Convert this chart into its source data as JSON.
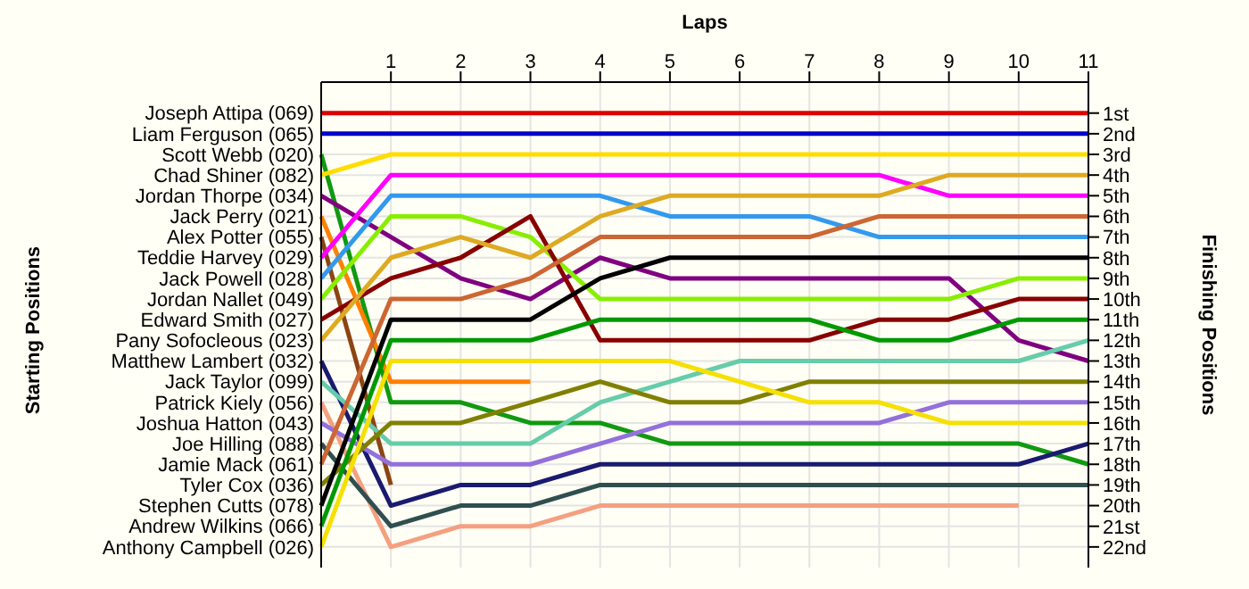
{
  "chart_data": {
    "type": "line",
    "xlabel": "Laps",
    "annotations": [
      "Starting Positions"
    ],
    "y2label": "Finishing Positions",
    "x": [
      0,
      1,
      2,
      3,
      4,
      5,
      6,
      7,
      8,
      9,
      10,
      11
    ],
    "xlim": [
      0,
      11
    ],
    "xticks": [
      1,
      2,
      3,
      4,
      5,
      6,
      7,
      8,
      9,
      10,
      11
    ],
    "y2lim": [
      23,
      -0.5
    ],
    "y2ticks": [
      {
        "value": 1,
        "label": "1st"
      },
      {
        "value": 2,
        "label": "2nd"
      },
      {
        "value": 3,
        "label": "3rd"
      },
      {
        "value": 4,
        "label": "4th"
      },
      {
        "value": 5,
        "label": "5th"
      },
      {
        "value": 6,
        "label": "6th"
      },
      {
        "value": 7,
        "label": "7th"
      },
      {
        "value": 8,
        "label": "8th"
      },
      {
        "value": 9,
        "label": "9th"
      },
      {
        "value": 10,
        "label": "10th"
      },
      {
        "value": 11,
        "label": "11th"
      },
      {
        "value": 12,
        "label": "12th"
      },
      {
        "value": 13,
        "label": "13th"
      },
      {
        "value": 14,
        "label": "14th"
      },
      {
        "value": 15,
        "label": "15th"
      },
      {
        "value": 16,
        "label": "16th"
      },
      {
        "value": 17,
        "label": "17th"
      },
      {
        "value": 18,
        "label": "18th"
      },
      {
        "value": 19,
        "label": "19th"
      },
      {
        "value": 20,
        "label": "20th"
      },
      {
        "value": 21,
        "label": "21st"
      },
      {
        "value": 22,
        "label": "22nd"
      }
    ],
    "grid": true,
    "legend": false,
    "series": [
      {
        "name": "Joseph Attipa (069)",
        "axis": "y2",
        "color": "#dd0000",
        "values": [
          1,
          1,
          1,
          1,
          1,
          1,
          1,
          1,
          1,
          1,
          1,
          1
        ]
      },
      {
        "name": "Liam Ferguson (065)",
        "axis": "y2",
        "color": "#0000cc",
        "values": [
          2,
          2,
          2,
          2,
          2,
          2,
          2,
          2,
          2,
          2,
          2,
          2
        ]
      },
      {
        "name": "Scott Webb (020)",
        "axis": "y2",
        "color": "#119911",
        "values": [
          3,
          15,
          15,
          16,
          16,
          17,
          17,
          17,
          17,
          17,
          17,
          18
        ]
      },
      {
        "name": "Chad Shiner (082)",
        "axis": "y2",
        "color": "#ffdd00",
        "values": [
          4,
          3,
          3,
          3,
          3,
          3,
          3,
          3,
          3,
          3,
          3,
          3
        ]
      },
      {
        "name": "Jordan Thorpe (034)",
        "axis": "y2",
        "color": "#800080",
        "values": [
          5,
          7,
          9,
          10,
          8,
          9,
          9,
          9,
          9,
          9,
          12,
          13
        ]
      },
      {
        "name": "Jack Perry (021)",
        "axis": "y2",
        "color": "#ff8000",
        "values": [
          6,
          14,
          14,
          14,
          null,
          null,
          null,
          null,
          null,
          null,
          null,
          null
        ]
      },
      {
        "name": "Alex Potter (055)",
        "axis": "y2",
        "color": "#8b4513",
        "values": [
          7,
          19,
          null,
          null,
          null,
          null,
          null,
          null,
          null,
          null,
          null,
          null
        ]
      },
      {
        "name": "Teddie Harvey (029)",
        "axis": "y2",
        "color": "#ff00ff",
        "values": [
          8,
          4,
          4,
          4,
          4,
          4,
          4,
          4,
          4,
          5,
          5,
          5
        ]
      },
      {
        "name": "Jack Powell (028)",
        "axis": "y2",
        "color": "#3399ee",
        "values": [
          9,
          5,
          5,
          5,
          5,
          6,
          6,
          6,
          7,
          7,
          7,
          7
        ]
      },
      {
        "name": "Jordan Nallet (049)",
        "axis": "y2",
        "color": "#88ee00",
        "values": [
          10,
          6,
          6,
          7,
          10,
          10,
          10,
          10,
          10,
          10,
          9,
          9
        ]
      },
      {
        "name": "Edward Smith (027)",
        "axis": "y2",
        "color": "#880000",
        "values": [
          11,
          9,
          8,
          6,
          12,
          12,
          12,
          12,
          11,
          11,
          10,
          10
        ]
      },
      {
        "name": "Pany Sofocleous (023)",
        "axis": "y2",
        "color": "#ddaa22",
        "values": [
          12,
          8,
          7,
          8,
          6,
          5,
          5,
          5,
          5,
          4,
          4,
          4
        ]
      },
      {
        "name": "Matthew Lambert (032)",
        "axis": "y2",
        "color": "#1a1a70",
        "values": [
          13,
          20,
          19,
          19,
          18,
          18,
          18,
          18,
          18,
          18,
          18,
          17
        ]
      },
      {
        "name": "Jack Taylor (099)",
        "axis": "y2",
        "color": "#66ccaa",
        "values": [
          14,
          17,
          17,
          17,
          15,
          14,
          13,
          13,
          13,
          13,
          13,
          12
        ]
      },
      {
        "name": "Patrick Kiely (056)",
        "axis": "y2",
        "color": "#f4a080",
        "values": [
          15,
          22,
          21,
          21,
          20,
          20,
          20,
          20,
          20,
          20,
          20,
          null
        ]
      },
      {
        "name": "Joshua Hatton (043)",
        "axis": "y2",
        "color": "#9370db",
        "values": [
          16,
          18,
          18,
          18,
          17,
          16,
          16,
          16,
          16,
          15,
          15,
          15
        ]
      },
      {
        "name": "Joe Hilling (088)",
        "axis": "y2",
        "color": "#2f4f4f",
        "values": [
          17,
          21,
          20,
          20,
          19,
          19,
          19,
          19,
          19,
          19,
          19,
          19
        ]
      },
      {
        "name": "Jamie Mack (061)",
        "axis": "y2",
        "color": "#cc6633",
        "values": [
          18,
          10,
          10,
          9,
          7,
          7,
          7,
          7,
          6,
          6,
          6,
          6
        ]
      },
      {
        "name": "Tyler Cox (036)",
        "axis": "y2",
        "color": "#808000",
        "values": [
          19,
          16,
          16,
          15,
          14,
          15,
          15,
          14,
          14,
          14,
          14,
          14
        ]
      },
      {
        "name": "Stephen Cutts (078)",
        "axis": "y2",
        "color": "#000000",
        "values": [
          20,
          11,
          11,
          11,
          9,
          8,
          8,
          8,
          8,
          8,
          8,
          8
        ]
      },
      {
        "name": "Andrew Wilkins (066)",
        "axis": "y2",
        "color": "#009900",
        "values": [
          21,
          12,
          12,
          12,
          11,
          11,
          11,
          11,
          12,
          12,
          11,
          11
        ]
      },
      {
        "name": "Anthony Campbell (026)",
        "axis": "y2",
        "color": "#f5e000",
        "values": [
          22,
          13,
          13,
          13,
          13,
          13,
          14,
          15,
          15,
          16,
          16,
          16
        ]
      }
    ]
  }
}
